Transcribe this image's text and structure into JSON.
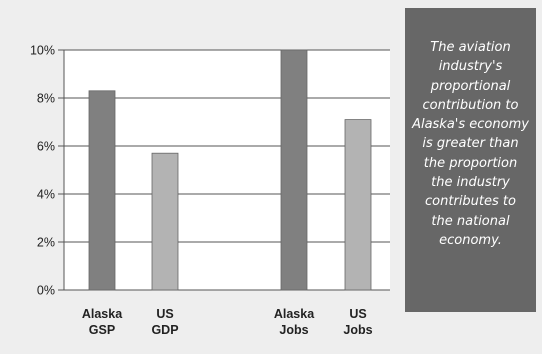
{
  "chart_data": {
    "type": "bar",
    "categories": [
      "Alaska GSP",
      "US GDP",
      "Alaska Jobs",
      "US Jobs"
    ],
    "category_lines": [
      [
        "Alaska",
        "GSP"
      ],
      [
        "US",
        "GDP"
      ],
      [
        "Alaska",
        "Jobs"
      ],
      [
        "US",
        "Jobs"
      ]
    ],
    "values": [
      8.3,
      5.7,
      10.0,
      7.1
    ],
    "bar_colors": [
      "#808080",
      "#b3b3b3",
      "#808080",
      "#b3b3b3"
    ],
    "ylim": [
      0,
      10
    ],
    "yticks": [
      0,
      2,
      4,
      6,
      8,
      10
    ],
    "ytick_labels": [
      "0%",
      "2%",
      "4%",
      "6%",
      "8%",
      "10%"
    ],
    "grid": true,
    "title": "",
    "xlabel": "",
    "ylabel": ""
  },
  "callout": {
    "lines": [
      "The aviation",
      "industry's",
      "proportional",
      "contribution to",
      "Alaska's economy",
      "is greater than",
      "the proportion",
      "the industry",
      "contributes to",
      "the national",
      "economy."
    ]
  },
  "colors": {
    "background": "#eeeeee",
    "callout_background": "#676767",
    "gridline": "#555555",
    "bar_dark": "#808080",
    "bar_light": "#b3b3b3"
  }
}
